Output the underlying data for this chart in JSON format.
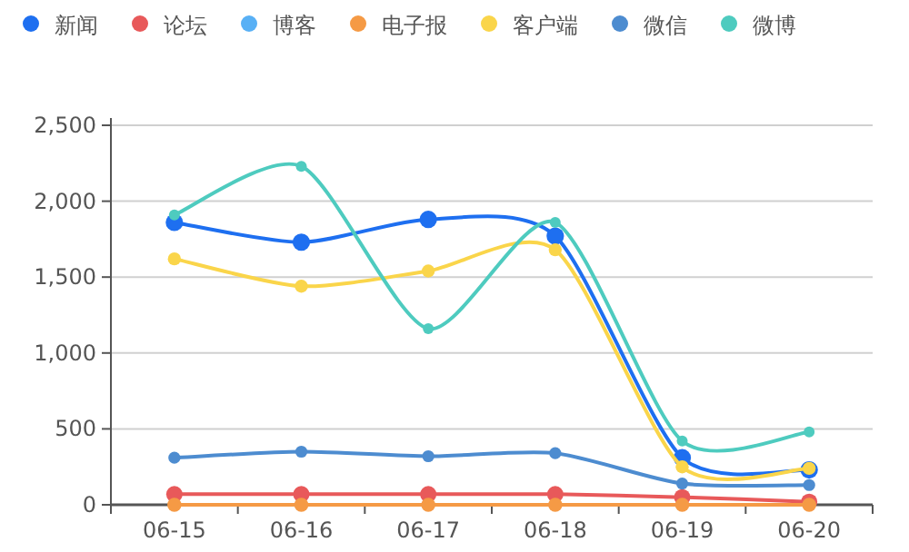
{
  "chart_data": {
    "type": "line",
    "categories": [
      "06-15",
      "06-16",
      "06-17",
      "06-18",
      "06-19",
      "06-20"
    ],
    "series": [
      {
        "name": "新闻",
        "color": "#1e6ff0",
        "values": [
          1860,
          1730,
          1880,
          1770,
          310,
          230
        ]
      },
      {
        "name": "论坛",
        "color": "#e8595a",
        "values": [
          70,
          70,
          70,
          70,
          50,
          20
        ]
      },
      {
        "name": "博客",
        "color": "#58b0f5",
        "values": [
          null,
          null,
          null,
          null,
          null,
          null
        ]
      },
      {
        "name": "电子报",
        "color": "#f59a45",
        "values": [
          0,
          0,
          0,
          0,
          0,
          0
        ]
      },
      {
        "name": "客户端",
        "color": "#fad54a",
        "values": [
          1620,
          1440,
          1540,
          1680,
          250,
          240
        ]
      },
      {
        "name": "微信",
        "color": "#4d8cd0",
        "values": [
          310,
          350,
          320,
          340,
          140,
          130
        ]
      },
      {
        "name": "微博",
        "color": "#4ecbbf",
        "values": [
          1910,
          2230,
          1160,
          1860,
          420,
          480
        ]
      }
    ],
    "ylim": [
      0,
      2500
    ],
    "yticks": [
      {
        "value": 0,
        "label": "0"
      },
      {
        "value": 500,
        "label": "500"
      },
      {
        "value": 1000,
        "label": "1,000"
      },
      {
        "value": 1500,
        "label": "1,500"
      },
      {
        "value": 2000,
        "label": "2,000"
      },
      {
        "value": 2500,
        "label": "2,500"
      }
    ],
    "grid": "y",
    "legend": "top",
    "marker": "circle",
    "line_style": "solid"
  }
}
